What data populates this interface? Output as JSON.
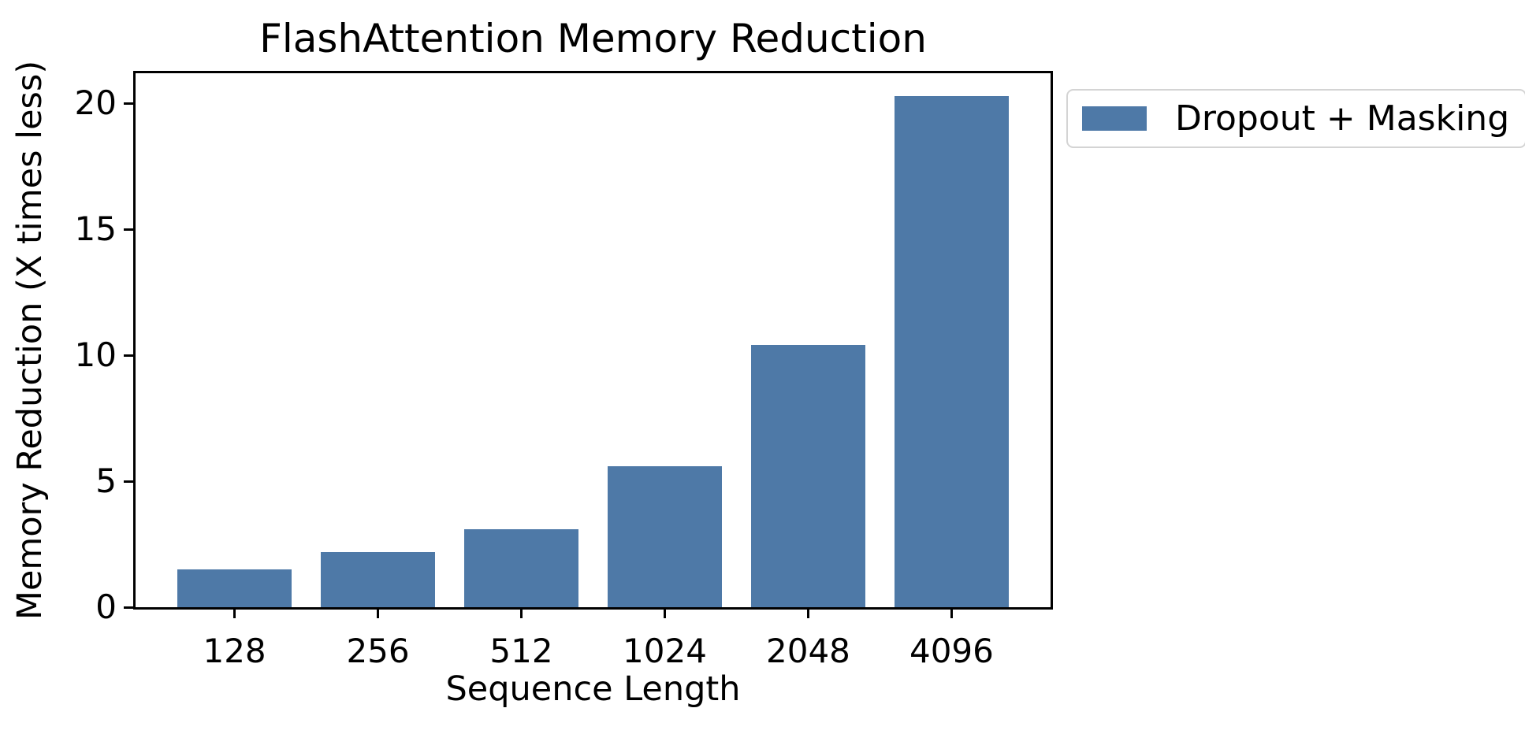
{
  "chart_data": {
    "type": "bar",
    "title": "FlashAttention Memory Reduction",
    "xlabel": "Sequence Length",
    "ylabel": "Memory Reduction (X times less)",
    "categories": [
      "128",
      "256",
      "512",
      "1024",
      "2048",
      "4096"
    ],
    "series": [
      {
        "name": "Dropout + Masking",
        "values": [
          1.5,
          2.2,
          3.1,
          5.6,
          10.4,
          20.3
        ]
      }
    ],
    "ylim": [
      0,
      21.2
    ],
    "yticks": [
      0,
      5,
      10,
      15,
      20
    ],
    "grid": false,
    "legend_position": "outside-upper-right",
    "colors": {
      "bar": "#4E79A7",
      "spine": "#000000",
      "legend_border": "#d4d4d4",
      "text": "#000000"
    }
  }
}
